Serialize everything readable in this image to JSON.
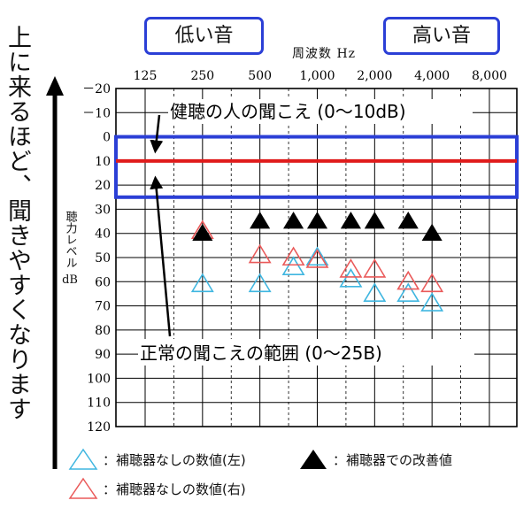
{
  "side_caption": "上に来るほど、聞きやすくなります",
  "tags": {
    "low": "低い音",
    "high": "高い音"
  },
  "x_axis_title": "周波数 Hz",
  "y_axis_title": {
    "vertical": "聴力レベル",
    "unit": "dB"
  },
  "annotations": {
    "normal_hearing": "健聴の人の聞こえ (0〜10dB)",
    "normal_range": "正常の聞こえの範囲 (0〜25B)"
  },
  "legend": {
    "aided": "：補聴器での改善値",
    "unaided_left": "：補聴器なしの数値(左)",
    "unaided_right": "：補聴器なしの数値(右)"
  },
  "colors": {
    "range_box": "#2b3fd6",
    "normal_line": "#e01b1b",
    "left_marker": "#3fb6e0",
    "right_marker": "#ea5a5a",
    "aided_marker": "#000000",
    "grid": "#000000"
  },
  "chart_data": {
    "type": "scatter",
    "x_tick_labels": [
      "125",
      "250",
      "500",
      "1,000",
      "2,000",
      "4,000",
      "8,000"
    ],
    "x_ticks": [
      125,
      250,
      500,
      1000,
      2000,
      4000,
      8000
    ],
    "x_scale": "log2",
    "y_tick_labels": [
      "－20",
      "－10",
      "0",
      "10",
      "20",
      "30",
      "40",
      "50",
      "60",
      "70",
      "80",
      "90",
      "100",
      "110",
      "120"
    ],
    "ylim": [
      -20,
      120
    ],
    "y_inverted": true,
    "grid": true,
    "normal_line_db": 10,
    "normal_range_db": [
      0,
      25
    ],
    "series": [
      {
        "name": "補聴器なしの数値(左)",
        "marker": "open-triangle",
        "color": "#3fb6e0",
        "points": [
          [
            250,
            61
          ],
          [
            500,
            61
          ],
          [
            750,
            54
          ],
          [
            1000,
            50
          ],
          [
            1500,
            59
          ],
          [
            2000,
            65
          ],
          [
            3000,
            65
          ],
          [
            4000,
            69
          ]
        ]
      },
      {
        "name": "補聴器なしの数値(右)",
        "marker": "open-triangle",
        "color": "#ea5a5a",
        "points": [
          [
            250,
            39
          ],
          [
            500,
            49
          ],
          [
            750,
            50
          ],
          [
            1000,
            51
          ],
          [
            1500,
            55
          ],
          [
            2000,
            55
          ],
          [
            3000,
            60
          ],
          [
            4000,
            61
          ]
        ]
      },
      {
        "name": "補聴器での改善値",
        "marker": "filled-triangle",
        "color": "#000000",
        "points": [
          [
            250,
            40
          ],
          [
            500,
            35
          ],
          [
            750,
            35
          ],
          [
            1000,
            35
          ],
          [
            1500,
            35
          ],
          [
            2000,
            35
          ],
          [
            3000,
            35
          ],
          [
            4000,
            40
          ]
        ]
      }
    ]
  }
}
